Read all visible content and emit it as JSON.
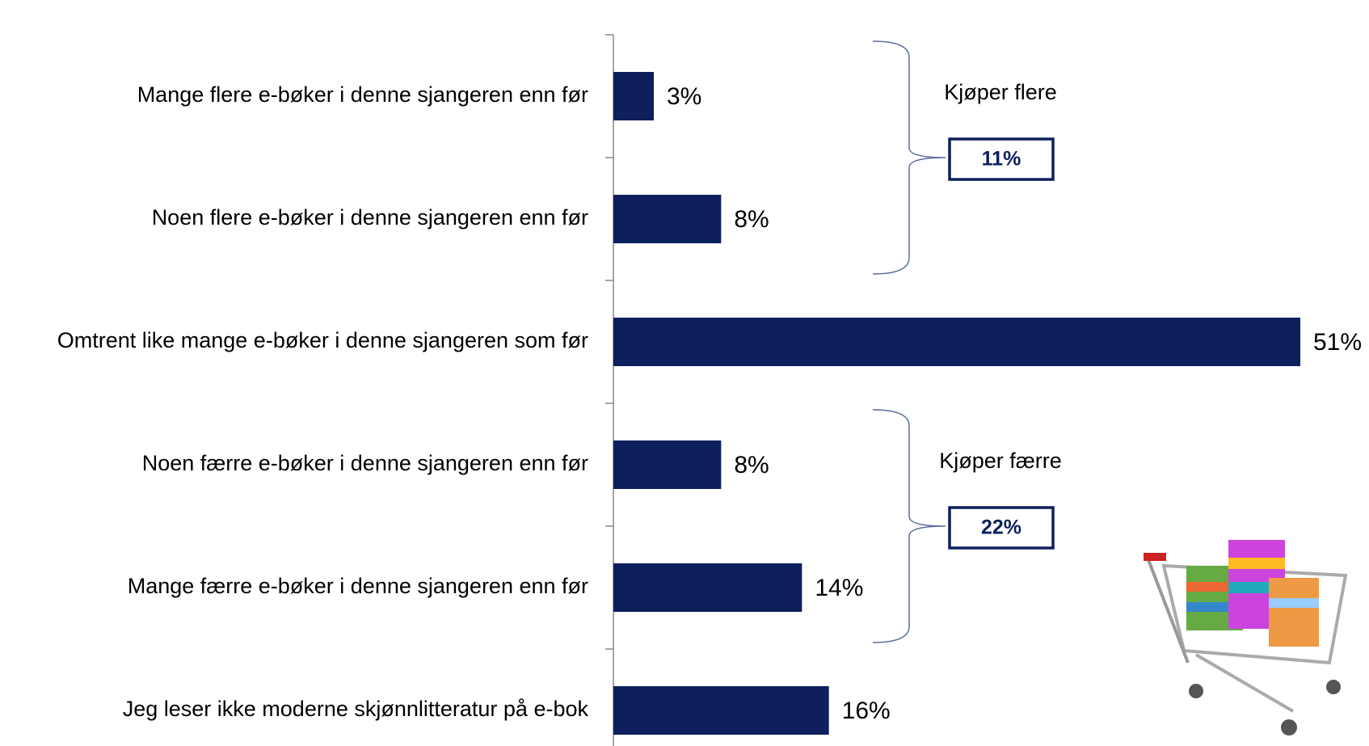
{
  "chart_data": {
    "type": "bar",
    "orientation": "horizontal",
    "categories": [
      "Mange flere e-bøker i denne sjangeren enn før",
      "Noen flere e-bøker i denne sjangeren enn før",
      "Omtrent like mange e-bøker i denne sjangeren som før",
      "Noen færre e-bøker i denne sjangeren enn før",
      "Mange færre e-bøker i denne sjangeren enn før",
      "Jeg leser ikke moderne skjønnlitteratur på e-bok"
    ],
    "values": [
      3,
      8,
      51,
      8,
      14,
      16
    ],
    "value_labels": [
      "3%",
      "8%",
      "51%",
      "8%",
      "14%",
      "16%"
    ],
    "color": "#0d1f5c",
    "annotations": [
      {
        "label": "Kjøper flere",
        "total": {
          "value": 11,
          "label": "11%"
        }
      },
      {
        "label": "Kjøper færre",
        "total": {
          "value": 22,
          "label": "22%"
        }
      }
    ]
  }
}
